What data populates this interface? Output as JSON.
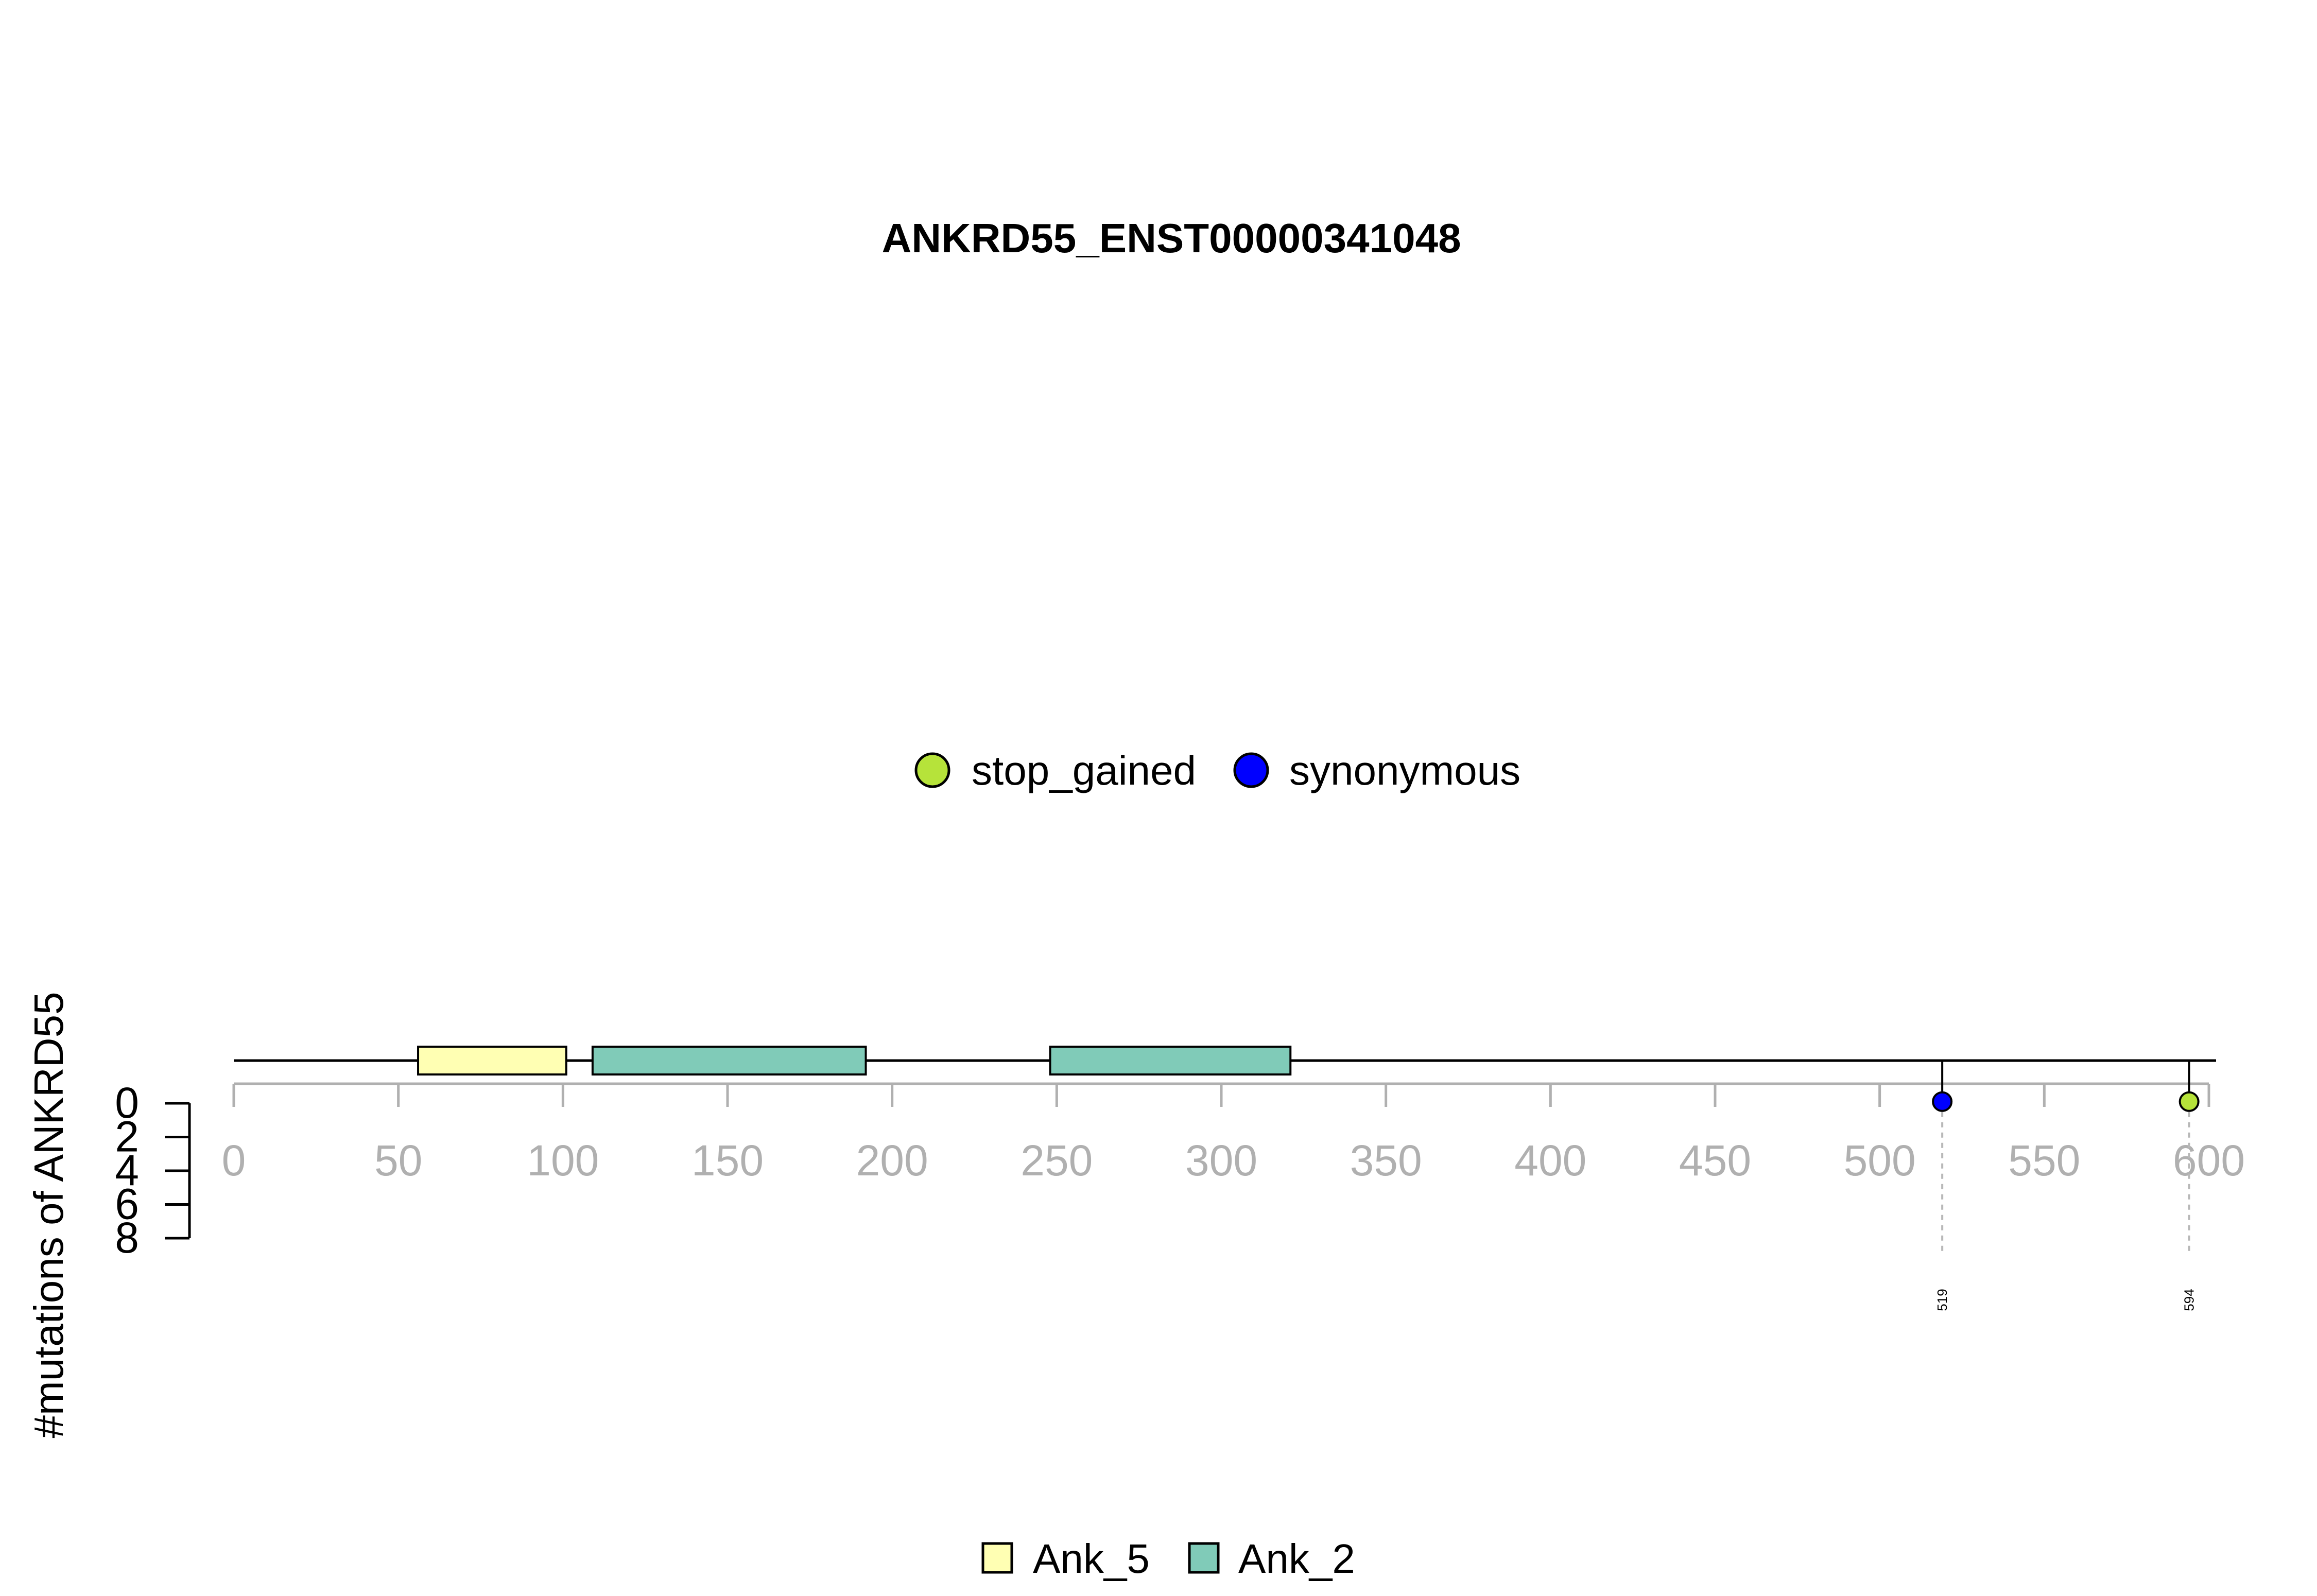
{
  "chart_data": {
    "type": "lollipop",
    "title": "ANKRD55_ENST00000341048",
    "ylabel": "#mutations of ANKRD55",
    "xlim": [
      0,
      600
    ],
    "x_ticks": [
      0,
      50,
      100,
      150,
      200,
      250,
      300,
      350,
      400,
      450,
      500,
      550,
      600
    ],
    "y_ticks": [
      0,
      2,
      4,
      6,
      8
    ],
    "ylim": [
      0,
      8
    ],
    "legend_mutation_types": [
      {
        "name": "stop_gained",
        "color": "#b6e33a"
      },
      {
        "name": "synonymous",
        "color": "#0000ff"
      }
    ],
    "legend_domains": [
      {
        "name": "Ank_5",
        "color": "#ffffb3"
      },
      {
        "name": "Ank_2",
        "color": "#80cbb8"
      }
    ],
    "domains": [
      {
        "name": "Ank_5",
        "start": 56,
        "end": 101,
        "color": "#ffffb3"
      },
      {
        "name": "Ank_2",
        "start": 109,
        "end": 192,
        "color": "#80cbb8"
      },
      {
        "name": "Ank_2",
        "start": 248,
        "end": 321,
        "color": "#80cbb8"
      }
    ],
    "mutations": [
      {
        "position": 519,
        "count": 1,
        "type": "synonymous",
        "color": "#0000ff",
        "label": "519"
      },
      {
        "position": 594,
        "count": 1,
        "type": "stop_gained",
        "color": "#b6e33a",
        "label": "594"
      }
    ]
  }
}
